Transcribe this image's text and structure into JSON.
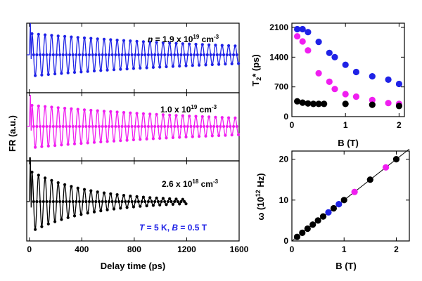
{
  "chart_data": [
    {
      "id": "faraday-rotation",
      "type": "line",
      "xlabel": "Delay time (ps)",
      "ylabel": "FR (a.u.)",
      "xlim": [
        -20,
        1600
      ],
      "xticks": [
        "0",
        "400",
        "800",
        "1200",
        "1600"
      ],
      "conditions": {
        "prefix_T": "T",
        "value_T": " = 5 K, ",
        "prefix_B": "B",
        "value_B": " = 0.5 T"
      },
      "series": [
        {
          "key": "top",
          "label_prefix": "n",
          "label_value": " = 1.9 x 10",
          "label_exp": "19",
          "label_unit": " cm",
          "label_unit_exp": "-3",
          "color": "#1f22e6",
          "t_end": 1600,
          "period_ps": 50,
          "amplitude": 1.0,
          "T2_ps": 1800,
          "onset_ps": 20,
          "marker_step_ps": 12.5
        },
        {
          "key": "mid",
          "label_value": "1.0 x 10",
          "label_exp": "19",
          "label_unit": " cm",
          "label_unit_exp": "-3",
          "color": "#f01ef0",
          "t_end": 1600,
          "period_ps": 50,
          "amplitude": 1.0,
          "T2_ps": 1700,
          "onset_ps": 20,
          "marker_step_ps": 12.5
        },
        {
          "key": "bot",
          "label_value": "2.6 x 10",
          "label_exp": "18",
          "label_unit": " cm",
          "label_unit_exp": "-3",
          "color": "#000000",
          "t_end": 1200,
          "period_ps": 50,
          "amplitude": 1.0,
          "T2_ps": 450,
          "onset_ps": 20,
          "marker_step_ps": 12.5
        }
      ]
    },
    {
      "id": "t2-vs-b",
      "type": "scatter",
      "xlabel": "B (T)",
      "ylabel_main": "T",
      "ylabel_sub": "2",
      "ylabel_rest": "* (ps)",
      "xlim": [
        0,
        2.1
      ],
      "ylim": [
        0,
        2200
      ],
      "xticks": [
        0,
        1,
        2
      ],
      "yticks": [
        0,
        700,
        1400,
        2100
      ],
      "series": [
        {
          "color": "#1f22e6",
          "points": [
            [
              0.1,
              2060
            ],
            [
              0.2,
              2060
            ],
            [
              0.3,
              1990
            ],
            [
              0.5,
              1760
            ],
            [
              0.7,
              1500
            ],
            [
              0.8,
              1400
            ],
            [
              1.0,
              1220
            ],
            [
              1.2,
              1050
            ],
            [
              1.5,
              950
            ],
            [
              1.8,
              870
            ],
            [
              2.0,
              770
            ]
          ]
        },
        {
          "color": "#f01ef0",
          "points": [
            [
              0.1,
              1890
            ],
            [
              0.2,
              1770
            ],
            [
              0.3,
              1560
            ],
            [
              0.5,
              1020
            ],
            [
              0.7,
              820
            ],
            [
              0.8,
              650
            ],
            [
              1.0,
              530
            ],
            [
              1.2,
              470
            ],
            [
              1.5,
              390
            ],
            [
              1.8,
              320
            ],
            [
              2.0,
              300
            ]
          ]
        },
        {
          "color": "#000000",
          "points": [
            [
              0.1,
              360
            ],
            [
              0.2,
              330
            ],
            [
              0.3,
              310
            ],
            [
              0.4,
              300
            ],
            [
              0.5,
              300
            ],
            [
              0.6,
              300
            ],
            [
              1.0,
              300
            ],
            [
              1.5,
              280
            ],
            [
              2.0,
              250
            ]
          ]
        }
      ]
    },
    {
      "id": "omega-vs-b",
      "type": "scatter",
      "xlabel": "B (T)",
      "ylabel_main": "ω (10",
      "ylabel_sup": "12",
      "ylabel_rest": " Hz)",
      "xlim": [
        0,
        2.25
      ],
      "ylim": [
        0,
        22
      ],
      "xticks": [
        0,
        1,
        2
      ],
      "yticks": [
        0,
        10,
        20
      ],
      "fit_line": {
        "slope": 10,
        "intercept": 0
      },
      "series": [
        {
          "color": "#000000",
          "points": [
            [
              0.1,
              1
            ],
            [
              0.2,
              2
            ],
            [
              0.3,
              3
            ],
            [
              0.4,
              4
            ],
            [
              0.5,
              5
            ],
            [
              0.6,
              6
            ],
            [
              0.8,
              8
            ],
            [
              1.0,
              10
            ],
            [
              1.5,
              15
            ],
            [
              2.0,
              20
            ]
          ]
        },
        {
          "color": "#1f22e6",
          "points": [
            [
              0.7,
              7
            ],
            [
              0.9,
              9
            ]
          ]
        },
        {
          "color": "#f01ef0",
          "points": [
            [
              1.2,
              12
            ],
            [
              1.8,
              18
            ]
          ]
        }
      ]
    }
  ]
}
